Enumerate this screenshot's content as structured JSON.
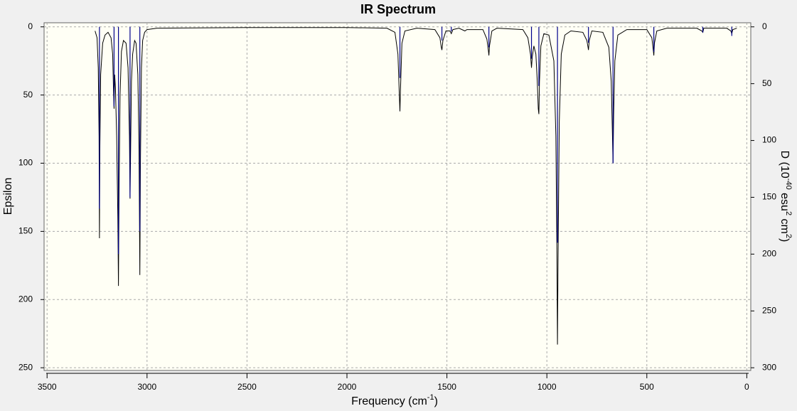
{
  "chart_data": {
    "type": "spectrum",
    "title": "IR Spectrum",
    "xlabel": [
      "Frequency (cm",
      "-1",
      ")"
    ],
    "ylabel": "Epsilon",
    "y2label": [
      "D (10",
      "-40",
      " esu",
      "2",
      " cm",
      "2",
      ")"
    ],
    "xlim": [
      3515,
      -20
    ],
    "xticks": [
      3500,
      3000,
      2500,
      2000,
      1500,
      1000,
      500,
      0
    ],
    "ylim": [
      -3,
      252
    ],
    "yticks": [
      0,
      50,
      100,
      150,
      200,
      250
    ],
    "y2lim": [
      -3.6,
      302.4
    ],
    "y2ticks": [
      0,
      50,
      100,
      150,
      200,
      250,
      300
    ],
    "grid": true,
    "series": [
      {
        "name": "Epsilon",
        "color": "#000000",
        "x": [
          3260,
          3250,
          3244,
          3240,
          3238,
          3236,
          3232,
          3222,
          3210,
          3195,
          3180,
          3172,
          3168,
          3165,
          3162,
          3158,
          3152,
          3146,
          3143,
          3140,
          3135,
          3128,
          3118,
          3105,
          3095,
          3088,
          3085,
          3082,
          3078,
          3072,
          3062,
          3055,
          3046,
          3040,
          3036,
          3033,
          3028,
          3022,
          3012,
          3000,
          2950,
          2500,
          2000,
          1800,
          1760,
          1745,
          1738,
          1735,
          1732,
          1725,
          1710,
          1650,
          1560,
          1535,
          1528,
          1525,
          1520,
          1505,
          1485,
          1478,
          1470,
          1440,
          1410,
          1400,
          1320,
          1300,
          1292,
          1290,
          1287,
          1275,
          1250,
          1120,
          1095,
          1082,
          1077,
          1073,
          1065,
          1055,
          1048,
          1043,
          1040,
          1037,
          1030,
          1015,
          990,
          965,
          955,
          950,
          947,
          944,
          938,
          928,
          910,
          880,
          820,
          800,
          794,
          792,
          788,
          775,
          720,
          690,
          678,
          672,
          669,
          666,
          660,
          645,
          600,
          500,
          475,
          467,
          465,
          462,
          450,
          400,
          250,
          225,
          220,
          215,
          100,
          80,
          75,
          70,
          50
        ],
        "values": [
          3,
          8,
          30,
          80,
          155,
          90,
          35,
          12,
          6,
          4,
          8,
          20,
          45,
          60,
          35,
          45,
          80,
          140,
          190,
          120,
          50,
          18,
          10,
          12,
          30,
          80,
          126,
          90,
          40,
          20,
          10,
          12,
          35,
          90,
          182,
          100,
          30,
          10,
          4,
          2,
          1,
          0.5,
          0.5,
          1,
          4,
          20,
          50,
          62,
          45,
          12,
          3,
          1,
          2,
          8,
          15,
          17,
          10,
          3,
          3,
          5,
          2,
          1,
          3,
          2,
          2,
          9,
          18,
          21,
          14,
          3,
          1,
          2,
          8,
          20,
          30,
          22,
          14,
          20,
          40,
          60,
          64,
          40,
          14,
          5,
          6,
          25,
          80,
          160,
          233,
          170,
          70,
          20,
          6,
          3,
          4,
          10,
          15,
          17,
          10,
          3,
          4,
          15,
          40,
          80,
          100,
          65,
          25,
          6,
          2,
          2,
          8,
          18,
          21,
          12,
          3,
          1,
          1,
          3,
          4,
          1,
          1,
          3,
          5,
          2,
          1
        ]
      },
      {
        "name": "D",
        "color": "#00008b",
        "axis": "y2",
        "x": [
          3238,
          3165,
          3143,
          3085,
          3036,
          1735,
          1525,
          1478,
          1290,
          1077,
          1040,
          947,
          792,
          669,
          465,
          220,
          75
        ],
        "values": [
          160,
          70,
          200,
          150,
          180,
          45,
          12,
          4,
          18,
          28,
          52,
          190,
          14,
          120,
          22,
          5,
          8
        ]
      }
    ]
  }
}
